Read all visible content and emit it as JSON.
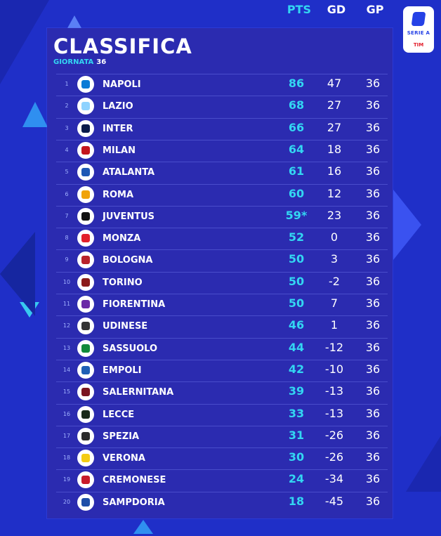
{
  "header": {
    "title": "CLASSIFICA",
    "round_label": "GIORNATA",
    "round_value": "36"
  },
  "logo": {
    "brand": "SERIE A",
    "sponsor": "TIM"
  },
  "columns": {
    "pts": "PTS",
    "gd": "GD",
    "gp": "GP"
  },
  "colors": {
    "background": "#1f2fc8",
    "panel": "#2b2bb0",
    "accent": "#33d6f2"
  },
  "standings": [
    {
      "pos": "1",
      "team": "NAPOLI",
      "pts": "86",
      "gd": "47",
      "gp": "36",
      "crest_color": "#0b7bd6"
    },
    {
      "pos": "2",
      "team": "LAZIO",
      "pts": "68",
      "gd": "27",
      "gp": "36",
      "crest_color": "#8fd3ff"
    },
    {
      "pos": "3",
      "team": "INTER",
      "pts": "66",
      "gd": "27",
      "gp": "36",
      "crest_color": "#0a1a4a"
    },
    {
      "pos": "4",
      "team": "MILAN",
      "pts": "64",
      "gd": "18",
      "gp": "36",
      "crest_color": "#c4151c"
    },
    {
      "pos": "5",
      "team": "ATALANTA",
      "pts": "61",
      "gd": "16",
      "gp": "36",
      "crest_color": "#1e58b5"
    },
    {
      "pos": "6",
      "team": "ROMA",
      "pts": "60",
      "gd": "12",
      "gp": "36",
      "crest_color": "#f0a30a"
    },
    {
      "pos": "7",
      "team": "JUVENTUS",
      "pts": "59*",
      "gd": "23",
      "gp": "36",
      "crest_color": "#111111"
    },
    {
      "pos": "8",
      "team": "MONZA",
      "pts": "52",
      "gd": "0",
      "gp": "36",
      "crest_color": "#e2202b"
    },
    {
      "pos": "9",
      "team": "BOLOGNA",
      "pts": "50",
      "gd": "3",
      "gp": "36",
      "crest_color": "#b8222b"
    },
    {
      "pos": "10",
      "team": "TORINO",
      "pts": "50",
      "gd": "-2",
      "gp": "36",
      "crest_color": "#8b1a1a"
    },
    {
      "pos": "11",
      "team": "FIORENTINA",
      "pts": "50",
      "gd": "7",
      "gp": "36",
      "crest_color": "#6a2aa6"
    },
    {
      "pos": "12",
      "team": "UDINESE",
      "pts": "46",
      "gd": "1",
      "gp": "36",
      "crest_color": "#333333"
    },
    {
      "pos": "13",
      "team": "SASSUOLO",
      "pts": "44",
      "gd": "-12",
      "gp": "36",
      "crest_color": "#118a3a"
    },
    {
      "pos": "14",
      "team": "EMPOLI",
      "pts": "42",
      "gd": "-10",
      "gp": "36",
      "crest_color": "#1f5fb5"
    },
    {
      "pos": "15",
      "team": "SALERNITANA",
      "pts": "39",
      "gd": "-13",
      "gp": "36",
      "crest_color": "#7a1420"
    },
    {
      "pos": "16",
      "team": "LECCE",
      "pts": "33",
      "gd": "-13",
      "gp": "36",
      "crest_color": "#1a2a1a"
    },
    {
      "pos": "17",
      "team": "SPEZIA",
      "pts": "31",
      "gd": "-26",
      "gp": "36",
      "crest_color": "#2b2b2b"
    },
    {
      "pos": "18",
      "team": "VERONA",
      "pts": "30",
      "gd": "-26",
      "gp": "36",
      "crest_color": "#f4cc14"
    },
    {
      "pos": "19",
      "team": "CREMONESE",
      "pts": "24",
      "gd": "-34",
      "gp": "36",
      "crest_color": "#c81b2b"
    },
    {
      "pos": "20",
      "team": "SAMPDORIA",
      "pts": "18",
      "gd": "-45",
      "gp": "36",
      "crest_color": "#1e4ea8"
    }
  ]
}
